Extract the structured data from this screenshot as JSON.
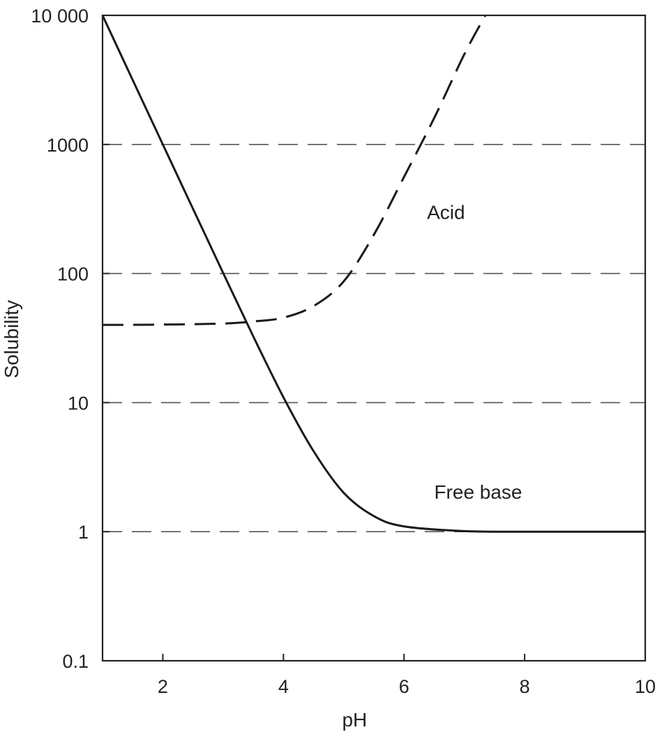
{
  "chart_data": {
    "type": "line",
    "xlabel": "pH",
    "ylabel": "Solubility",
    "x_scale": "linear",
    "y_scale": "log",
    "xlim": [
      1,
      10
    ],
    "ylim": [
      0.1,
      10000
    ],
    "x_ticks": [
      {
        "value": 2,
        "label": "2"
      },
      {
        "value": 4,
        "label": "4"
      },
      {
        "value": 6,
        "label": "6"
      },
      {
        "value": 8,
        "label": "8"
      },
      {
        "value": 10,
        "label": "10"
      }
    ],
    "y_ticks": [
      {
        "value": 0.1,
        "label": "0.1"
      },
      {
        "value": 1,
        "label": "1"
      },
      {
        "value": 10,
        "label": "10"
      },
      {
        "value": 100,
        "label": "100"
      },
      {
        "value": 1000,
        "label": "1000"
      },
      {
        "value": 10000,
        "label": "10 000"
      }
    ],
    "grid": {
      "horizontal": true,
      "style": "dashed",
      "at": [
        1,
        10,
        100,
        1000
      ]
    },
    "series": [
      {
        "name": "Free base",
        "line_style": "solid",
        "x": [
          1,
          1.5,
          2,
          2.5,
          3,
          3.5,
          4,
          4.5,
          5,
          5.5,
          6,
          7,
          8,
          9,
          10
        ],
        "values": [
          10000,
          3160,
          1000,
          317,
          101,
          32.6,
          11.0,
          4.2,
          2.0,
          1.32,
          1.1,
          1.01,
          1.0,
          1.0,
          1.0
        ]
      },
      {
        "name": "Acid",
        "line_style": "dashed",
        "x": [
          1,
          2,
          3,
          3.5,
          4,
          4.5,
          5,
          5.5,
          6,
          6.5,
          7,
          7.35
        ],
        "values": [
          40,
          40.2,
          41,
          42.5,
          45.5,
          56,
          87,
          200,
          560,
          1600,
          5000,
          10000
        ]
      }
    ]
  }
}
